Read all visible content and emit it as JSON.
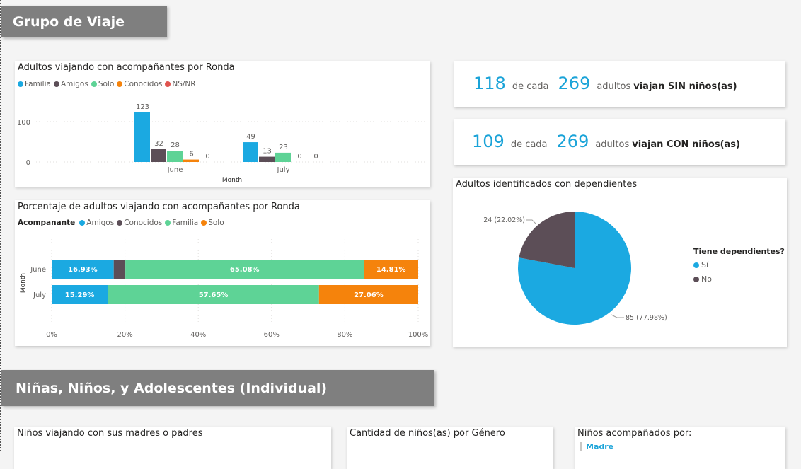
{
  "section1": {
    "title": "Grupo de Viaje"
  },
  "section2": {
    "title": "Niñas, Niños, y Adolescentes (Individual)"
  },
  "colors": {
    "familia": "#1ba9e1",
    "amigos": "#5c4e57",
    "solo": "#5ed396",
    "conocidos": "#f5830c",
    "nsnr": "#e0534e",
    "si": "#1ba9e1",
    "no": "#5c4e57",
    "kpi": "#1aa3d8"
  },
  "chart1": {
    "title": "Adultos viajando con acompañantes por Ronda",
    "legend": [
      {
        "label": "Familia",
        "color": "#1ba9e1"
      },
      {
        "label": "Amigos",
        "color": "#5c4e57"
      },
      {
        "label": "Solo",
        "color": "#5ed396"
      },
      {
        "label": "Conocidos",
        "color": "#f5830c"
      },
      {
        "label": "NS/NR",
        "color": "#e0534e"
      }
    ],
    "y_ticks": [
      "100",
      "0"
    ],
    "xlabel": "Month"
  },
  "chart2": {
    "title": "Porcentaje de adultos viajando con acompañantes por Ronda",
    "legend_title": "Acompanante",
    "legend": [
      {
        "label": "Amigos",
        "color": "#1ba9e1"
      },
      {
        "label": "Conocidos",
        "color": "#5c4e57"
      },
      {
        "label": "Familia",
        "color": "#5ed396"
      },
      {
        "label": "Solo",
        "color": "#f5830c"
      }
    ],
    "ylabel": "Month",
    "x_ticks": [
      "0%",
      "20%",
      "40%",
      "60%",
      "80%",
      "100%"
    ]
  },
  "kpi1": {
    "n1": "118",
    "mid": "de cada",
    "n2": "269",
    "text": "adultos",
    "bold": "viajan SIN niños(as)"
  },
  "kpi2": {
    "n1": "109",
    "mid": "de cada",
    "n2": "269",
    "text": "adultos",
    "bold": "viajan CON niños(as)"
  },
  "pie": {
    "title": "Adultos identificados con dependientes",
    "legend_title": "Tiene dependientes?",
    "legend": [
      {
        "label": "Sí",
        "color": "#1ba9e1"
      },
      {
        "label": "No",
        "color": "#5c4e57"
      }
    ],
    "label_no": "24 (22.02%)",
    "label_si": "85 (77.98%)"
  },
  "bottom": {
    "card1_title": "Niños viajando con sus madres o padres",
    "card2_title": "Cantidad de niños(as) por Género",
    "card3_title": "Niños acompañados por:",
    "card3_item": "Madre"
  },
  "chart_data": [
    {
      "type": "bar",
      "title": "Adultos viajando con acompañantes por Ronda",
      "categories": [
        "June",
        "July"
      ],
      "xlabel": "Month",
      "ylim": [
        0,
        130
      ],
      "series": [
        {
          "name": "Familia",
          "values": [
            123,
            49
          ]
        },
        {
          "name": "Amigos",
          "values": [
            32,
            13
          ]
        },
        {
          "name": "Solo",
          "values": [
            28,
            23
          ]
        },
        {
          "name": "Conocidos",
          "values": [
            6,
            0
          ]
        },
        {
          "name": "NS/NR",
          "values": [
            0,
            0
          ]
        }
      ]
    },
    {
      "type": "bar",
      "title": "Porcentaje de adultos viajando con acompañantes por Ronda",
      "orientation": "horizontal-stacked-100",
      "categories": [
        "June",
        "July"
      ],
      "ylabel": "Month",
      "series": [
        {
          "name": "Amigos",
          "values": [
            16.93,
            15.29
          ],
          "labels": [
            "16.93%",
            "15.29%"
          ]
        },
        {
          "name": "Conocidos",
          "values": [
            3.18,
            0
          ],
          "labels": [
            "",
            ""
          ]
        },
        {
          "name": "Familia",
          "values": [
            65.08,
            57.65
          ],
          "labels": [
            "65.08%",
            "57.65%"
          ]
        },
        {
          "name": "Solo",
          "values": [
            14.81,
            27.06
          ],
          "labels": [
            "14.81%",
            "27.06%"
          ]
        }
      ]
    },
    {
      "type": "pie",
      "title": "Adultos identificados con dependientes",
      "slices": [
        {
          "name": "Sí",
          "value": 85,
          "percent": 77.98
        },
        {
          "name": "No",
          "value": 24,
          "percent": 22.02
        }
      ]
    }
  ]
}
